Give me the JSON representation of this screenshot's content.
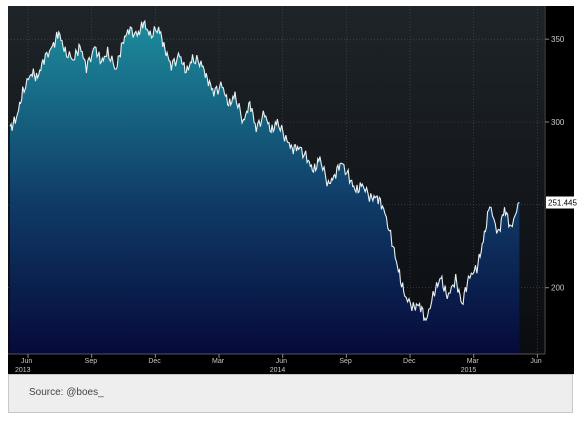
{
  "source": "Source: @boes_",
  "chart_data": {
    "type": "area",
    "x_tick_labels": [
      "Jun",
      "Sep",
      "Dec",
      "Mar",
      "Jun",
      "Sep",
      "Dec",
      "Mar",
      "Jun"
    ],
    "year_labels": [
      "2013",
      "2014",
      "2015"
    ],
    "y_ticks": [
      200,
      300,
      350
    ],
    "ylim": [
      160,
      370
    ],
    "last_value_label": "251.445",
    "grid": true,
    "x_unit": "months since Jun 2013",
    "x": [
      0,
      0.3,
      0.6,
      1.0,
      1.3,
      1.6,
      2.0,
      2.3,
      2.6,
      3.0,
      3.3,
      3.6,
      4.0,
      4.3,
      4.6,
      5.0,
      5.3,
      5.6,
      6.0,
      6.3,
      6.6,
      7.0,
      7.3,
      7.6,
      8.0,
      8.3,
      8.6,
      9.0,
      9.3,
      9.6,
      10.0,
      10.3,
      10.6,
      11.0,
      11.3,
      11.6,
      12.0,
      12.3,
      12.6,
      13.0,
      13.3,
      13.6,
      14.0,
      14.3,
      14.6,
      15.0,
      15.3,
      15.6,
      16.0,
      16.3,
      16.6,
      17.0,
      17.3,
      17.6,
      18.0,
      18.3,
      18.6,
      19.0,
      19.3,
      19.6,
      20.0,
      20.3,
      20.6,
      21.0,
      21.3,
      21.6,
      22.0,
      22.3,
      22.6,
      23.0,
      23.3,
      23.6,
      24.0
    ],
    "values": [
      296,
      302,
      318,
      330,
      327,
      338,
      345,
      354,
      342,
      338,
      346,
      333,
      345,
      336,
      342,
      332,
      348,
      356,
      352,
      360,
      352,
      357,
      344,
      334,
      340,
      330,
      338,
      336,
      326,
      318,
      322,
      310,
      316,
      300,
      312,
      296,
      305,
      294,
      300,
      290,
      284,
      285,
      278,
      270,
      278,
      262,
      268,
      276,
      266,
      258,
      262,
      254,
      255,
      248,
      228,
      210,
      195,
      188,
      190,
      180,
      198,
      206,
      194,
      205,
      190,
      206,
      212,
      228,
      250,
      232,
      248,
      236,
      251.445
    ]
  }
}
